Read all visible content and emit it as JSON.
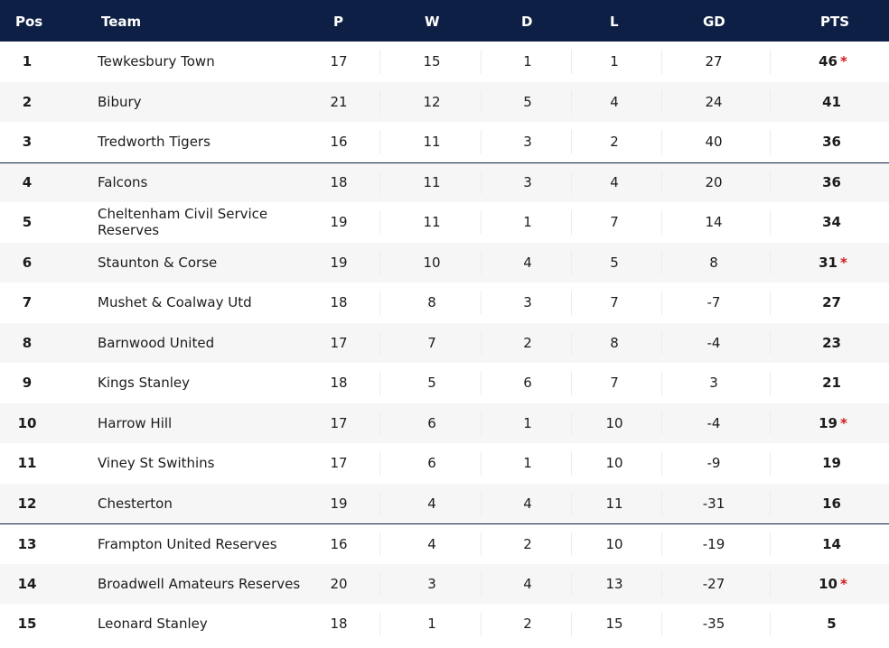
{
  "header": {
    "pos": "Pos",
    "team": "Team",
    "p": "P",
    "w": "W",
    "d": "D",
    "l": "L",
    "gd": "GD",
    "pts": "PTS"
  },
  "colors": {
    "header_bg": "#0e1f45",
    "header_text": "#ffffff",
    "alt_row": "#f6f6f6",
    "star": "#d11b1b"
  },
  "rows": [
    {
      "pos": "1",
      "team": "Tewkesbury Town",
      "p": "17",
      "w": "15",
      "d": "1",
      "l": "1",
      "gd": "27",
      "pts": "46",
      "star": "*"
    },
    {
      "pos": "2",
      "team": "Bibury",
      "p": "21",
      "w": "12",
      "d": "5",
      "l": "4",
      "gd": "24",
      "pts": "41",
      "star": ""
    },
    {
      "pos": "3",
      "team": "Tredworth Tigers",
      "p": "16",
      "w": "11",
      "d": "3",
      "l": "2",
      "gd": "40",
      "pts": "36",
      "star": ""
    },
    {
      "pos": "4",
      "team": "Falcons",
      "p": "18",
      "w": "11",
      "d": "3",
      "l": "4",
      "gd": "20",
      "pts": "36",
      "star": ""
    },
    {
      "pos": "5",
      "team": "Cheltenham Civil Service Reserves",
      "p": "19",
      "w": "11",
      "d": "1",
      "l": "7",
      "gd": "14",
      "pts": "34",
      "star": ""
    },
    {
      "pos": "6",
      "team": "Staunton & Corse",
      "p": "19",
      "w": "10",
      "d": "4",
      "l": "5",
      "gd": "8",
      "pts": "31",
      "star": "*"
    },
    {
      "pos": "7",
      "team": "Mushet & Coalway Utd",
      "p": "18",
      "w": "8",
      "d": "3",
      "l": "7",
      "gd": "-7",
      "pts": "27",
      "star": ""
    },
    {
      "pos": "8",
      "team": "Barnwood United",
      "p": "17",
      "w": "7",
      "d": "2",
      "l": "8",
      "gd": "-4",
      "pts": "23",
      "star": ""
    },
    {
      "pos": "9",
      "team": "Kings Stanley",
      "p": "18",
      "w": "5",
      "d": "6",
      "l": "7",
      "gd": "3",
      "pts": "21",
      "star": ""
    },
    {
      "pos": "10",
      "team": "Harrow Hill",
      "p": "17",
      "w": "6",
      "d": "1",
      "l": "10",
      "gd": "-4",
      "pts": "19",
      "star": "*"
    },
    {
      "pos": "11",
      "team": "Viney St Swithins",
      "p": "17",
      "w": "6",
      "d": "1",
      "l": "10",
      "gd": "-9",
      "pts": "19",
      "star": ""
    },
    {
      "pos": "12",
      "team": "Chesterton",
      "p": "19",
      "w": "4",
      "d": "4",
      "l": "11",
      "gd": "-31",
      "pts": "16",
      "star": ""
    },
    {
      "pos": "13",
      "team": "Frampton United Reserves",
      "p": "16",
      "w": "4",
      "d": "2",
      "l": "10",
      "gd": "-19",
      "pts": "14",
      "star": ""
    },
    {
      "pos": "14",
      "team": "Broadwell Amateurs Reserves",
      "p": "20",
      "w": "3",
      "d": "4",
      "l": "13",
      "gd": "-27",
      "pts": "10",
      "star": "*"
    },
    {
      "pos": "15",
      "team": "Leonard Stanley",
      "p": "18",
      "w": "1",
      "d": "2",
      "l": "15",
      "gd": "-35",
      "pts": "5",
      "star": ""
    }
  ]
}
